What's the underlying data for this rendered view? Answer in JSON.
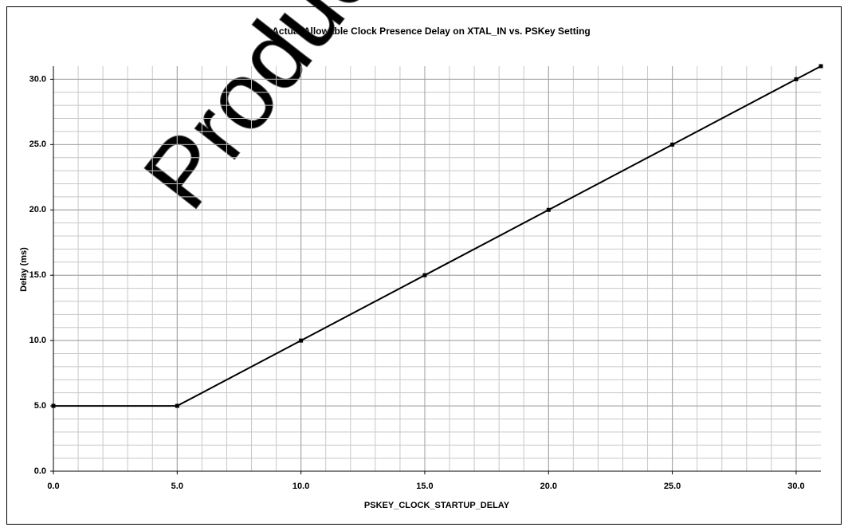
{
  "chart_data": {
    "type": "line",
    "title": "Actual Allowable Clock Presence Delay on XTAL_IN vs. PSKey Setting",
    "x_label": "PSKEY_CLOCK_STARTUP_DELAY",
    "y_label": "Delay (ms)",
    "watermark": "Production",
    "x": [
      0,
      5,
      10,
      15,
      20,
      25,
      30,
      31
    ],
    "series": [
      {
        "color": "#000000",
        "values": [
          5,
          5,
          10,
          15,
          20,
          25,
          30,
          31
        ]
      }
    ],
    "xlim": [
      0,
      31
    ],
    "ylim": [
      0,
      31
    ],
    "xticks": [
      {
        "value": 0,
        "label": "0.0"
      },
      {
        "value": 5,
        "label": "5.0"
      },
      {
        "value": 10,
        "label": "10.0"
      },
      {
        "value": 15,
        "label": "15.0"
      },
      {
        "value": 20,
        "label": "20.0"
      },
      {
        "value": 25,
        "label": "25.0"
      },
      {
        "value": 30,
        "label": "30.0"
      }
    ],
    "yticks": [
      {
        "value": 0,
        "label": "0.0"
      },
      {
        "value": 5,
        "label": "5.0"
      },
      {
        "value": 10,
        "label": "10.0"
      },
      {
        "value": 15,
        "label": "15.0"
      },
      {
        "value": 20,
        "label": "20.0"
      },
      {
        "value": 25,
        "label": "25.0"
      },
      {
        "value": 30,
        "label": "30.0"
      }
    ],
    "grid": true,
    "minor_grid": 1
  }
}
